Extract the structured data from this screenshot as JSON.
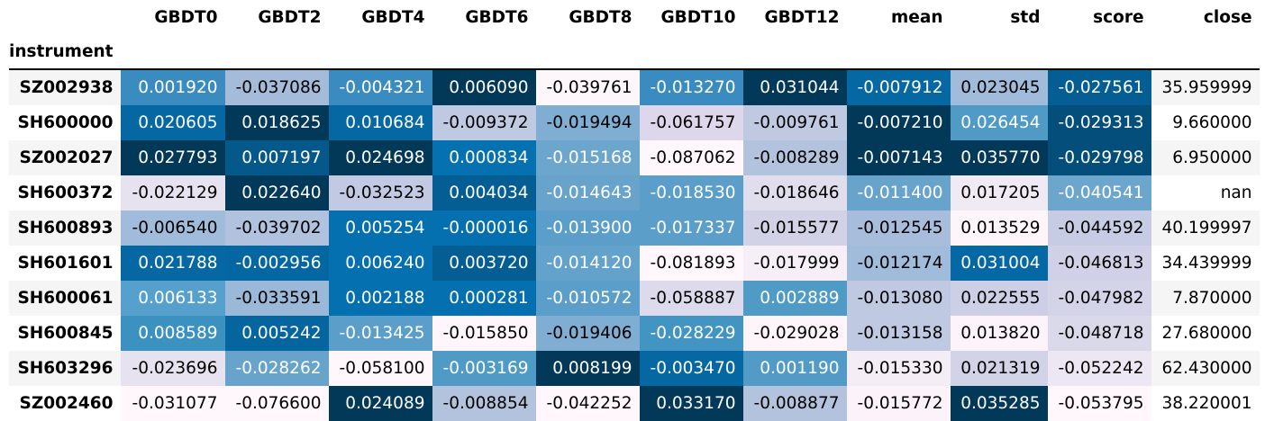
{
  "table": {
    "index_name": "instrument",
    "columns": [
      "GBDT0",
      "GBDT2",
      "GBDT4",
      "GBDT6",
      "GBDT8",
      "GBDT10",
      "GBDT12",
      "mean",
      "std",
      "score",
      "close"
    ],
    "rows": [
      {
        "instrument": "SZ002938",
        "values": [
          "0.001920",
          "-0.037086",
          "-0.004321",
          "0.006090",
          "-0.039761",
          "-0.013270",
          "0.031044",
          "-0.007912",
          "0.023045",
          "-0.027561",
          "35.959999"
        ],
        "bg": [
          "#3a8cc0",
          "#a4bcda",
          "#3a8cc0",
          "#023858",
          "#fdf7fb",
          "#3a8cc0",
          "#023858",
          "#0568a3",
          "#a1bbda",
          "#045e94",
          ""
        ],
        "fg": [
          "#fff",
          "#000",
          "#fff",
          "#fff",
          "#000",
          "#fff",
          "#fff",
          "#fff",
          "#000",
          "#fff",
          "#000"
        ]
      },
      {
        "instrument": "SH600000",
        "values": [
          "0.020605",
          "0.018625",
          "0.010684",
          "-0.009372",
          "-0.019494",
          "-0.061757",
          "-0.009761",
          "-0.007210",
          "0.026454",
          "-0.029313",
          "9.660000"
        ],
        "bg": [
          "#0568a3",
          "#023858",
          "#0568a3",
          "#c0c9e2",
          "#80aed2",
          "#ded6ea",
          "#c0c9e2",
          "#023858",
          "#509ac6",
          "#034e7b",
          ""
        ],
        "fg": [
          "#fff",
          "#fff",
          "#fff",
          "#000",
          "#000",
          "#000",
          "#000",
          "#fff",
          "#fff",
          "#fff",
          "#000"
        ]
      },
      {
        "instrument": "SZ002027",
        "values": [
          "0.027793",
          "0.007197",
          "0.024698",
          "0.000834",
          "-0.015168",
          "-0.087062",
          "-0.008289",
          "-0.007143",
          "0.035770",
          "-0.029798",
          "6.950000"
        ],
        "bg": [
          "#023858",
          "#04588a",
          "#023858",
          "#0571b0",
          "#6da6cd",
          "#fff7fb",
          "#b3c3de",
          "#023858",
          "#023858",
          "#034e7b",
          ""
        ],
        "fg": [
          "#fff",
          "#fff",
          "#fff",
          "#fff",
          "#fff",
          "#000",
          "#000",
          "#fff",
          "#fff",
          "#fff",
          "#000"
        ]
      },
      {
        "instrument": "SH600372",
        "values": [
          "-0.022129",
          "0.022640",
          "-0.032523",
          "0.004034",
          "-0.014643",
          "-0.018530",
          "-0.018646",
          "-0.011400",
          "0.017205",
          "-0.040541",
          "nan"
        ],
        "bg": [
          "#e6e2ef",
          "#023858",
          "#c1cae2",
          "#045e94",
          "#67a3cb",
          "#5a9ec9",
          "#e0dded",
          "#67a3cb",
          "#f0eaf4",
          "#6da6cd",
          ""
        ],
        "fg": [
          "#000",
          "#fff",
          "#000",
          "#fff",
          "#fff",
          "#fff",
          "#000",
          "#fff",
          "#000",
          "#fff",
          "#000"
        ]
      },
      {
        "instrument": "SH600893",
        "values": [
          "-0.006540",
          "-0.039702",
          "0.005254",
          "-0.000016",
          "-0.013900",
          "-0.017337",
          "-0.015577",
          "-0.012545",
          "0.013529",
          "-0.044592",
          "40.199997"
        ],
        "bg": [
          "#a1bbda",
          "#b0c2de",
          "#0570b0",
          "#0570b0",
          "#5a9ec9",
          "#5a9ec9",
          "#d1d2e6",
          "#a7bddb",
          "#fdf5fa",
          "#c6cce3",
          ""
        ],
        "fg": [
          "#000",
          "#000",
          "#fff",
          "#fff",
          "#fff",
          "#fff",
          "#000",
          "#000",
          "#000",
          "#000",
          "#000"
        ]
      },
      {
        "instrument": "SH601601",
        "values": [
          "0.021788",
          "-0.002956",
          "0.006240",
          "0.003720",
          "-0.014120",
          "-0.081893",
          "-0.017999",
          "-0.012174",
          "0.031004",
          "-0.046813",
          "34.439999"
        ],
        "bg": [
          "#0568a3",
          "#0567a2",
          "#0570b0",
          "#045e94",
          "#62a2cb",
          "#fff7fb",
          "#f6eff7",
          "#a1bbda",
          "#0468a5",
          "#d0d1e6",
          ""
        ],
        "fg": [
          "#fff",
          "#fff",
          "#fff",
          "#fff",
          "#fff",
          "#000",
          "#000",
          "#000",
          "#fff",
          "#000",
          "#000"
        ]
      },
      {
        "instrument": "SH600061",
        "values": [
          "0.006133",
          "-0.033591",
          "0.002188",
          "0.000281",
          "-0.010572",
          "-0.058887",
          "0.002889",
          "-0.013080",
          "0.022555",
          "-0.047982",
          "7.870000"
        ],
        "bg": [
          "#56a0ce",
          "#9ab8d8",
          "#0570b0",
          "#0570b0",
          "#5a9ec9",
          "#dcdaeb",
          "#509ac6",
          "#c0c9e2",
          "#cccfe5",
          "#d4d4e8",
          ""
        ],
        "fg": [
          "#fff",
          "#000",
          "#fff",
          "#fff",
          "#fff",
          "#000",
          "#fff",
          "#000",
          "#000",
          "#000",
          "#000"
        ]
      },
      {
        "instrument": "SH600845",
        "values": [
          "0.008589",
          "0.005242",
          "-0.013425",
          "-0.015850",
          "-0.019406",
          "-0.028229",
          "-0.029028",
          "-0.013158",
          "0.013820",
          "-0.048718",
          "27.680000"
        ],
        "bg": [
          "#3b92c1",
          "#05659f",
          "#5a9ec9",
          "#fef6fb",
          "#80aed2",
          "#4295c3",
          "#fdf5fa",
          "#c0c9e2",
          "#fcf4fa",
          "#dad9ea",
          ""
        ],
        "fg": [
          "#fff",
          "#fff",
          "#fff",
          "#000",
          "#000",
          "#fff",
          "#000",
          "#000",
          "#000",
          "#000",
          "#000"
        ]
      },
      {
        "instrument": "SH603296",
        "values": [
          "-0.023696",
          "-0.028262",
          "-0.058100",
          "-0.003169",
          "0.008199",
          "-0.003470",
          "0.001190",
          "-0.015330",
          "0.021319",
          "-0.052242",
          "62.430000"
        ],
        "bg": [
          "#e6e2ef",
          "#67a3cb",
          "#fff7fb",
          "#509ac6",
          "#023858",
          "#0568a3",
          "#529bc7",
          "#f4edf6",
          "#d2d3e7",
          "#ece7f2",
          ""
        ],
        "fg": [
          "#000",
          "#fff",
          "#000",
          "#fff",
          "#fff",
          "#fff",
          "#fff",
          "#000",
          "#000",
          "#000",
          "#000"
        ]
      },
      {
        "instrument": "SZ002460",
        "values": [
          "-0.031077",
          "-0.076600",
          "0.024089",
          "-0.008854",
          "-0.042252",
          "0.033170",
          "-0.008877",
          "-0.015772",
          "0.035285",
          "-0.053795",
          "38.220001"
        ],
        "bg": [
          "#fff7fb",
          "#fff7fb",
          "#023858",
          "#b3c3de",
          "#fff7fb",
          "#023858",
          "#b3c3de",
          "#fbf3f9",
          "#023858",
          "#fff7fb",
          ""
        ],
        "fg": [
          "#000",
          "#000",
          "#fff",
          "#000",
          "#000",
          "#fff",
          "#000",
          "#000",
          "#fff",
          "#000",
          "#000"
        ]
      }
    ]
  }
}
